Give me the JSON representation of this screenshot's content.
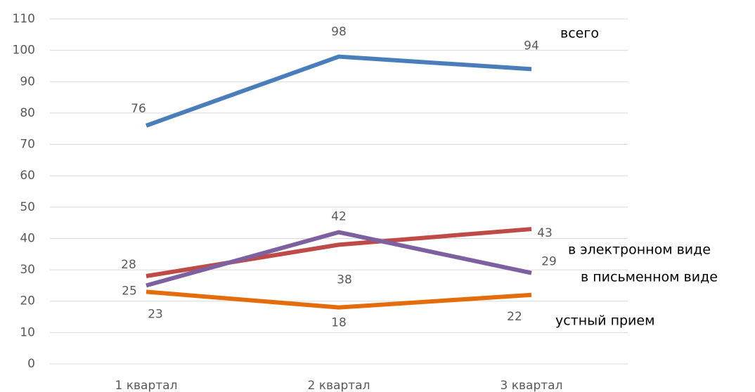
{
  "chart_data": {
    "type": "line",
    "categories": [
      "1 квартал",
      "2 квартал",
      "3 квартал"
    ],
    "series": [
      {
        "name": "всего",
        "color": "#4a7ebb",
        "values": [
          76,
          98,
          94
        ]
      },
      {
        "name": "в электронном виде",
        "color": "#be4b48",
        "values": [
          28,
          38,
          43
        ]
      },
      {
        "name": "в письменном виде",
        "color": "#7d60a0",
        "values": [
          25,
          42,
          29
        ]
      },
      {
        "name": "устный прием",
        "color": "#e46c0a",
        "values": [
          23,
          18,
          22
        ]
      }
    ],
    "ylim": [
      0,
      110
    ],
    "yticks": [
      0,
      10,
      20,
      30,
      40,
      50,
      60,
      70,
      80,
      90,
      100,
      110
    ],
    "grid": true
  }
}
